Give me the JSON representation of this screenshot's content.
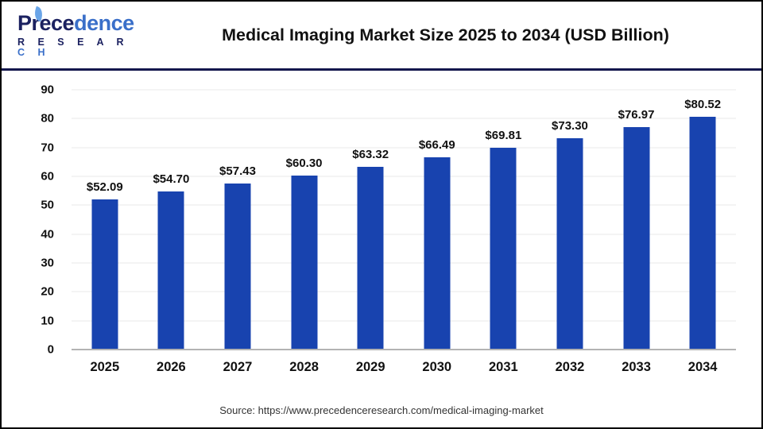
{
  "header": {
    "logo": {
      "name_part1": "Prece",
      "name_part2": "dence",
      "subtitle_part1": "R E S E A R",
      "subtitle_part2": " C H"
    },
    "title": "Medical Imaging Market Size 2025 to 2034 (USD Billion)"
  },
  "chart_data": {
    "type": "bar",
    "title": "Medical Imaging Market Size 2025 to 2034 (USD Billion)",
    "categories": [
      "2025",
      "2026",
      "2027",
      "2028",
      "2029",
      "2030",
      "2031",
      "2032",
      "2033",
      "2034"
    ],
    "values": [
      52.09,
      54.7,
      57.43,
      60.3,
      63.32,
      66.49,
      69.81,
      73.3,
      76.97,
      80.52
    ],
    "value_labels": [
      "$52.09",
      "$54.70",
      "$57.43",
      "$60.30",
      "$63.32",
      "$66.49",
      "$69.81",
      "$73.30",
      "$76.97",
      "$80.52"
    ],
    "xlabel": "",
    "ylabel": "",
    "ylim": [
      0,
      90
    ],
    "ytick_interval": 10,
    "grid": true,
    "legend": "none",
    "bar_color": "#1843af",
    "gridline_color": "#e9e9e9",
    "axis_line_color": "#b3b3b3"
  },
  "footer": {
    "source": "Source: https://www.precedenceresearch.com/medical-imaging-market"
  },
  "colors": {
    "header_separator": "#14174d",
    "logo_navy": "#1b2160",
    "logo_blue": "#3a6fc9",
    "text": "#111111",
    "background": "#ffffff",
    "frame_border": "#000000"
  }
}
